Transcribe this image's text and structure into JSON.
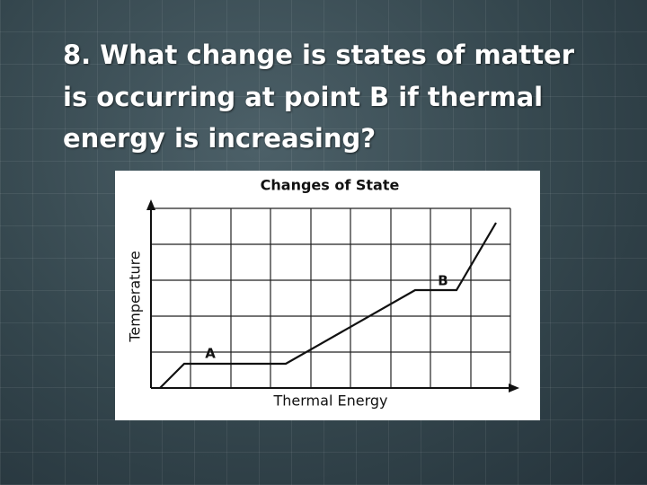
{
  "slide": {
    "title_lines": [
      "8. What change is states of matter",
      "is occurring at point B if thermal",
      "energy is increasing?"
    ]
  },
  "figure": {
    "title": "Changes of State",
    "x_label": "Thermal Energy",
    "y_label": "Temperature",
    "points": [
      {
        "label": "A"
      },
      {
        "label": "B"
      }
    ]
  }
}
